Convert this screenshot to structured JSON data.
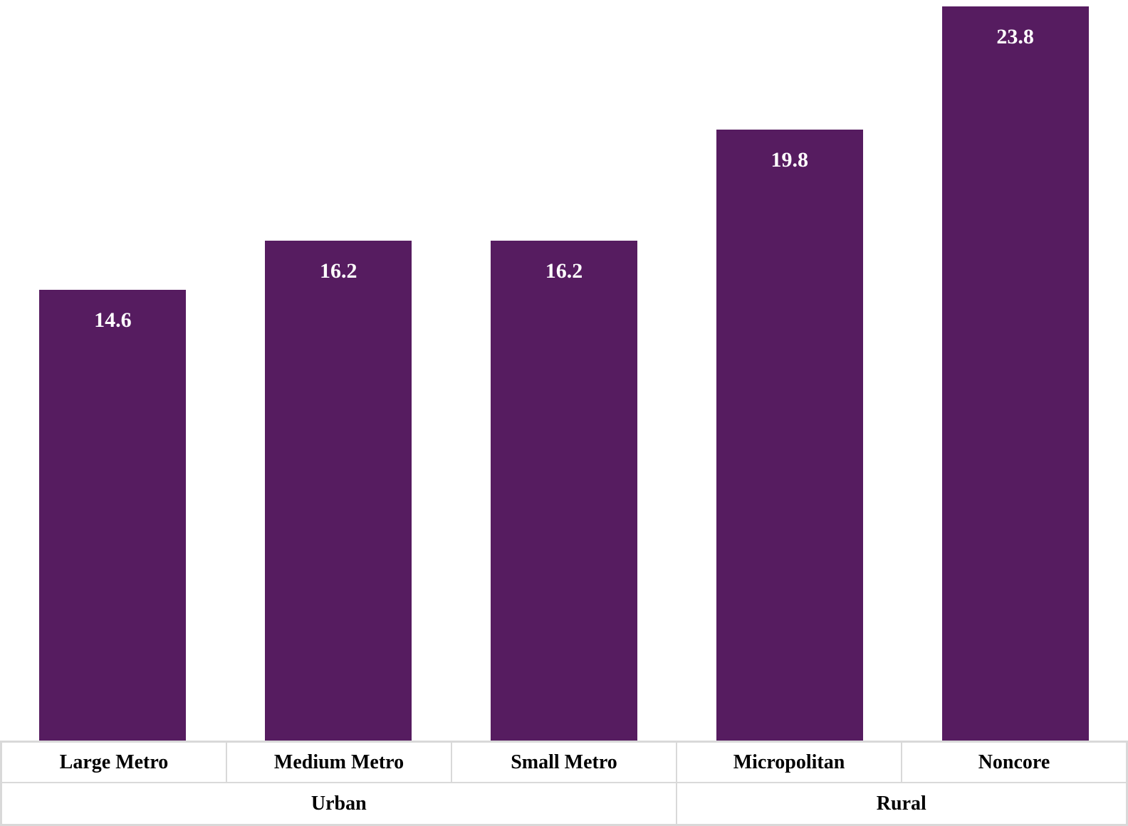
{
  "chart_data": {
    "type": "bar",
    "categories": [
      "Large Metro",
      "Medium Metro",
      "Small Metro",
      "Micropolitan",
      "Noncore"
    ],
    "values": [
      14.6,
      16.2,
      16.2,
      19.8,
      23.8
    ],
    "value_labels": [
      "14.6",
      "16.2",
      "16.2",
      "19.8",
      "23.8"
    ],
    "groups": [
      {
        "label": "Urban",
        "span": 3
      },
      {
        "label": "Rural",
        "span": 2
      }
    ],
    "title": "",
    "xlabel": "",
    "ylabel": "",
    "ylim": [
      0,
      24
    ],
    "grid": false,
    "legend": false,
    "orientation": "vertical",
    "bar_color": "#561C60",
    "value_label_color": "#FFFFFF",
    "axis_border_color": "#D9D9D9",
    "axis_text_color": "#000000",
    "background_color": "#FFFFFF"
  }
}
